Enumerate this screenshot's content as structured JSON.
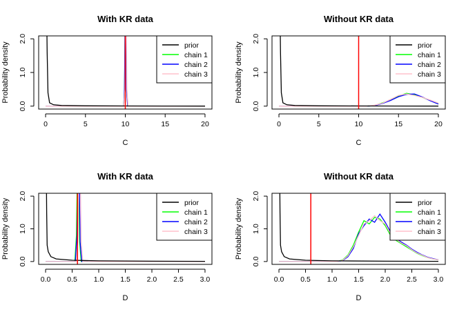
{
  "colors": {
    "prior": "#000000",
    "chain 1": "#00ff00",
    "chain 2": "#0000ff",
    "chain 3": "#ffc0cb",
    "reference": "#ff0000"
  },
  "chart_data": [
    {
      "type": "line",
      "title": "With KR data",
      "xlabel": "C",
      "ylabel": "Probability density",
      "xlim": [
        0,
        20
      ],
      "ylim": [
        0,
        2
      ],
      "xticks": [
        "0",
        "5",
        "10",
        "15",
        "20"
      ],
      "yticks": [
        "0.0",
        "1.0",
        "2.0"
      ],
      "legend": [
        "prior",
        "chain 1",
        "chain 2",
        "chain 3"
      ],
      "legend_position": "top-right",
      "reference_line_x": 10,
      "prior": {
        "x": [
          0.1,
          0.2,
          0.3,
          0.5,
          1,
          2,
          5,
          10,
          15,
          20
        ],
        "y": [
          3.5,
          1.6,
          0.4,
          0.1,
          0.04,
          0.02,
          0.01,
          0.005,
          0.003,
          0.002
        ]
      },
      "series": [
        {
          "name": "chain 1",
          "x": [
            0,
            9.8,
            9.9,
            10.0,
            10.05,
            10.15,
            10.3,
            20
          ],
          "y": [
            0,
            0,
            0.5,
            3.0,
            3.0,
            0.5,
            0,
            0
          ]
        },
        {
          "name": "chain 2",
          "x": [
            0,
            9.8,
            9.9,
            10.0,
            10.05,
            10.15,
            10.3,
            20
          ],
          "y": [
            0,
            0,
            0.5,
            3.0,
            3.0,
            0.5,
            0,
            0
          ]
        },
        {
          "name": "chain 3",
          "x": [
            0,
            9.8,
            9.95,
            10.05,
            10.1,
            10.2,
            10.35,
            20
          ],
          "y": [
            0,
            0,
            0.5,
            3.0,
            3.0,
            0.5,
            0,
            0
          ]
        }
      ]
    },
    {
      "type": "line",
      "title": "Without KR data",
      "xlabel": "C",
      "ylabel": "Probability density",
      "xlim": [
        0,
        20
      ],
      "ylim": [
        0,
        2
      ],
      "xticks": [
        "0",
        "5",
        "10",
        "15",
        "20"
      ],
      "yticks": [
        "0.0",
        "1.0",
        "2.0"
      ],
      "legend": [
        "prior",
        "chain 1",
        "chain 2",
        "chain 3"
      ],
      "legend_position": "top-right",
      "reference_line_x": 10,
      "prior": {
        "x": [
          0.1,
          0.2,
          0.3,
          0.5,
          1,
          2,
          5,
          10,
          15,
          20
        ],
        "y": [
          3.5,
          1.6,
          0.4,
          0.1,
          0.04,
          0.02,
          0.01,
          0.005,
          0.003,
          0.002
        ]
      },
      "series": [
        {
          "name": "chain 1",
          "x": [
            0,
            11,
            12,
            13,
            14,
            15,
            16,
            17,
            18,
            19,
            20
          ],
          "y": [
            0,
            0,
            0.02,
            0.1,
            0.18,
            0.3,
            0.38,
            0.34,
            0.26,
            0.17,
            0.08
          ]
        },
        {
          "name": "chain 2",
          "x": [
            0,
            11,
            12,
            13,
            14,
            15,
            16,
            17,
            18,
            19,
            20
          ],
          "y": [
            0,
            0,
            0.02,
            0.08,
            0.17,
            0.28,
            0.35,
            0.36,
            0.27,
            0.16,
            0.06
          ]
        },
        {
          "name": "chain 3",
          "x": [
            0,
            11,
            12,
            13,
            14,
            15,
            16,
            17,
            18,
            19,
            20
          ],
          "y": [
            0,
            0,
            0.03,
            0.09,
            0.2,
            0.32,
            0.36,
            0.32,
            0.26,
            0.18,
            0.09
          ]
        }
      ]
    },
    {
      "type": "line",
      "title": "With KR data",
      "xlabel": "D",
      "ylabel": "Probability density",
      "xlim": [
        0,
        3
      ],
      "ylim": [
        0,
        2
      ],
      "xticks": [
        "0.0",
        "0.5",
        "1.0",
        "1.5",
        "2.0",
        "2.5",
        "3.0"
      ],
      "yticks": [
        "0.0",
        "1.0",
        "2.0"
      ],
      "legend": [
        "prior",
        "chain 1",
        "chain 2",
        "chain 3"
      ],
      "legend_position": "top-right",
      "reference_line_x": 0.6,
      "prior": {
        "x": [
          0.01,
          0.02,
          0.03,
          0.05,
          0.1,
          0.2,
          0.5,
          1,
          2,
          3
        ],
        "y": [
          3.5,
          1.5,
          0.5,
          0.3,
          0.15,
          0.08,
          0.04,
          0.02,
          0.01,
          0.005
        ]
      },
      "series": [
        {
          "name": "chain 1",
          "x": [
            0,
            0.55,
            0.58,
            0.6,
            0.62,
            0.64,
            0.67,
            3
          ],
          "y": [
            0,
            0,
            0.8,
            3.0,
            3.0,
            0.6,
            0,
            0
          ]
        },
        {
          "name": "chain 2",
          "x": [
            0,
            0.56,
            0.59,
            0.61,
            0.63,
            0.65,
            0.68,
            3
          ],
          "y": [
            0,
            0,
            0.8,
            3.0,
            3.0,
            0.6,
            0,
            0
          ]
        },
        {
          "name": "chain 3",
          "x": [
            0,
            0.58,
            0.61,
            0.63,
            0.65,
            0.67,
            0.7,
            3
          ],
          "y": [
            0,
            0,
            0.8,
            3.0,
            3.0,
            0.6,
            0,
            0
          ]
        }
      ]
    },
    {
      "type": "line",
      "title": "Without KR data",
      "xlabel": "D",
      "ylabel": "Probability density",
      "xlim": [
        0,
        3
      ],
      "ylim": [
        0,
        2
      ],
      "xticks": [
        "0.0",
        "0.5",
        "1.0",
        "1.5",
        "2.0",
        "2.5",
        "3.0"
      ],
      "yticks": [
        "0.0",
        "1.0",
        "2.0"
      ],
      "legend": [
        "prior",
        "chain 1",
        "chain 2",
        "chain 3"
      ],
      "legend_position": "top-right",
      "reference_line_x": 0.6,
      "prior": {
        "x": [
          0.01,
          0.02,
          0.03,
          0.05,
          0.1,
          0.2,
          0.5,
          1,
          2,
          3
        ],
        "y": [
          3.5,
          1.5,
          0.5,
          0.3,
          0.15,
          0.08,
          0.04,
          0.02,
          0.01,
          0.005
        ]
      },
      "series": [
        {
          "name": "chain 1",
          "x": [
            0,
            1.1,
            1.2,
            1.3,
            1.4,
            1.5,
            1.6,
            1.7,
            1.8,
            1.9,
            2.0,
            2.1,
            2.2,
            2.3,
            2.4,
            2.5,
            2.6,
            2.7,
            2.8,
            2.9,
            3.0
          ],
          "y": [
            0,
            0,
            0.05,
            0.2,
            0.5,
            0.9,
            1.25,
            1.15,
            1.35,
            1.3,
            1.1,
            0.8,
            0.65,
            0.55,
            0.45,
            0.35,
            0.25,
            0.18,
            0.12,
            0.08,
            0.05
          ]
        },
        {
          "name": "chain 2",
          "x": [
            0,
            1.1,
            1.2,
            1.3,
            1.4,
            1.5,
            1.6,
            1.7,
            1.8,
            1.9,
            2.0,
            2.1,
            2.2,
            2.3,
            2.4,
            2.5,
            2.6,
            2.7,
            2.8,
            2.9,
            3.0
          ],
          "y": [
            0,
            0,
            0.03,
            0.15,
            0.4,
            0.85,
            1.1,
            1.3,
            1.2,
            1.45,
            1.2,
            0.9,
            0.7,
            0.6,
            0.5,
            0.38,
            0.28,
            0.2,
            0.13,
            0.09,
            0.05
          ]
        },
        {
          "name": "chain 3",
          "x": [
            0,
            1.1,
            1.2,
            1.3,
            1.4,
            1.5,
            1.6,
            1.7,
            1.8,
            1.9,
            2.0,
            2.1,
            2.2,
            2.3,
            2.4,
            2.5,
            2.6,
            2.7,
            2.8,
            2.9,
            3.0
          ],
          "y": [
            0,
            0,
            0.04,
            0.18,
            0.45,
            0.8,
            1.15,
            1.25,
            1.4,
            1.25,
            1.15,
            0.85,
            0.68,
            0.57,
            0.48,
            0.36,
            0.26,
            0.19,
            0.12,
            0.08,
            0.05
          ]
        }
      ]
    }
  ]
}
